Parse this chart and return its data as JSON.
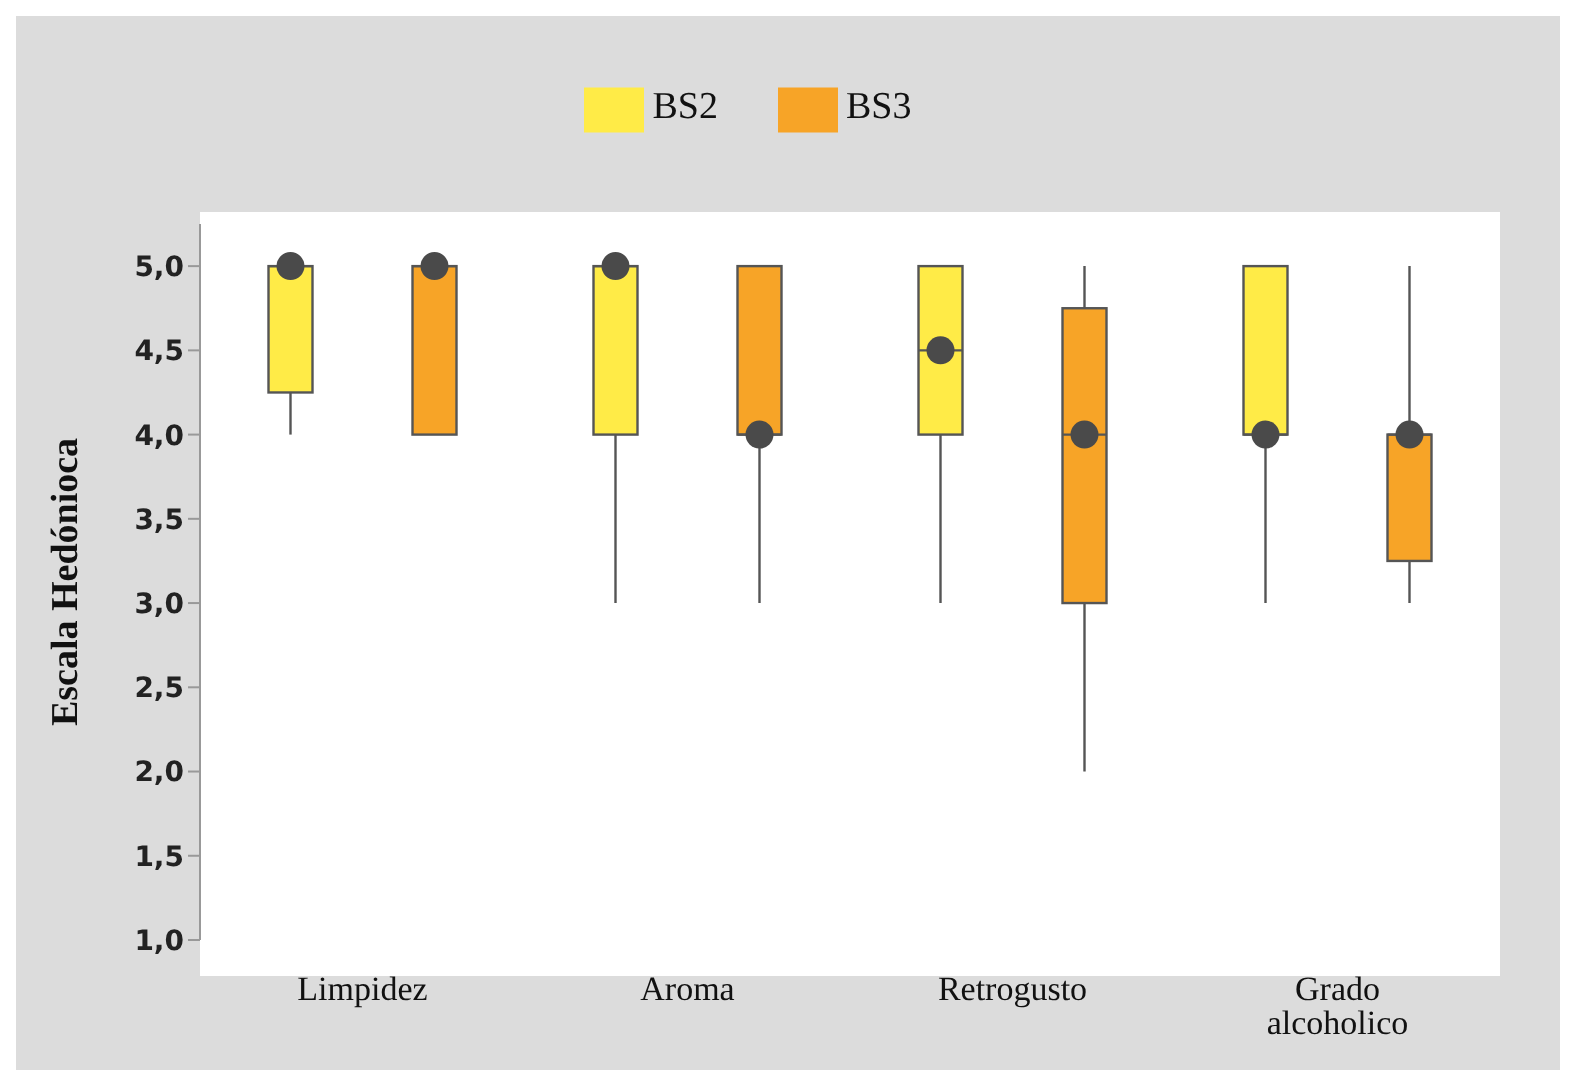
{
  "chart_data": {
    "type": "box",
    "ylabel": "Escala Hedónioca",
    "categories": [
      "Limpidez",
      "Aroma",
      "Retrogusto",
      "Grado alcoholico"
    ],
    "series": [
      {
        "name": "BS2",
        "color": "#ffeb47",
        "boxes": [
          {
            "low": 4,
            "q1": 4.25,
            "median": 5,
            "q3": 5,
            "high": 5
          },
          {
            "low": 3,
            "q1": 4,
            "median": 5,
            "q3": 5,
            "high": 5
          },
          {
            "low": 3,
            "q1": 4,
            "median": 4.5,
            "q3": 5,
            "high": 5
          },
          {
            "low": 3,
            "q1": 4,
            "median": 4,
            "q3": 5,
            "high": 5
          }
        ]
      },
      {
        "name": "BS3",
        "color": "#f7a427",
        "boxes": [
          {
            "low": 4,
            "q1": 4,
            "median": 5,
            "q3": 5,
            "high": 5
          },
          {
            "low": 3,
            "q1": 4,
            "median": 4,
            "q3": 5,
            "high": 5
          },
          {
            "low": 2,
            "q1": 3,
            "median": 4,
            "q3": 4.75,
            "high": 5
          },
          {
            "low": 3,
            "q1": 3.25,
            "median": 4,
            "q3": 4,
            "high": 5
          }
        ]
      },
      {
        "type": "scatter",
        "color": "#4a4a4a",
        "x": [
          "Limpidez",
          "Aroma",
          "Retrogusto",
          "Grado alcoholico"
        ],
        "values": [
          5,
          5,
          4.5,
          4
        ]
      },
      {
        "type": "scatter",
        "color": "#4a4a4a",
        "x": [
          "Limpidez",
          "Aroma",
          "Retrogusto",
          "Grado alcoholico"
        ],
        "values": [
          5,
          4,
          4,
          4
        ]
      }
    ],
    "ylim": [
      1,
      5.25
    ],
    "yticks": [
      {
        "value": 1,
        "label": "1,0"
      },
      {
        "value": 1.5,
        "label": "1,5"
      },
      {
        "value": 2,
        "label": "2,0"
      },
      {
        "value": 2.5,
        "label": "2,5"
      },
      {
        "value": 3,
        "label": "3,0"
      },
      {
        "value": 3.5,
        "label": "3,5"
      },
      {
        "value": 4,
        "label": "4,0"
      },
      {
        "value": 4.5,
        "label": "4,5"
      },
      {
        "value": 5,
        "label": "5,0"
      }
    ],
    "grid": false,
    "legend": "top",
    "marker": "circle"
  }
}
